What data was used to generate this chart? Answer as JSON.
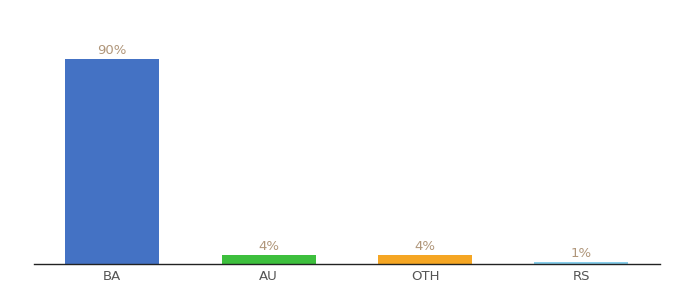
{
  "categories": [
    "BA",
    "AU",
    "OTH",
    "RS"
  ],
  "values": [
    90,
    4,
    4,
    1
  ],
  "bar_colors": [
    "#4472C4",
    "#3DBF3D",
    "#F5A623",
    "#87CEEB"
  ],
  "label_color": "#B0967A",
  "value_labels": [
    "90%",
    "4%",
    "4%",
    "1%"
  ],
  "background_color": "#ffffff",
  "ylim": [
    0,
    100
  ],
  "bar_width": 0.6,
  "label_fontsize": 9.5,
  "tick_fontsize": 9.5
}
